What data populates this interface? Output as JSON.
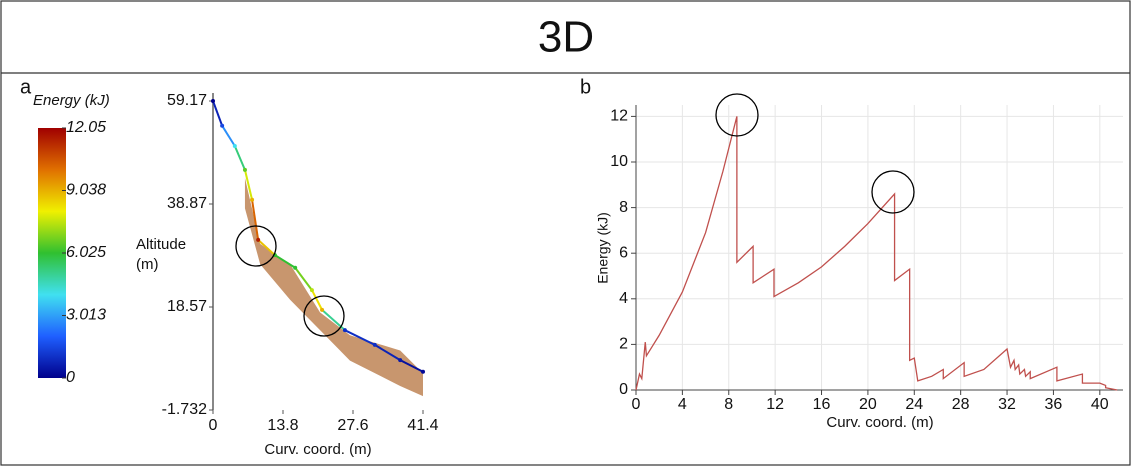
{
  "header": {
    "title": "3D"
  },
  "chart_data": [
    {
      "type": "profile",
      "label": "a",
      "ylabel": [
        "Altitude",
        "(m)"
      ],
      "xlabel": "Curv. coord. (m)",
      "xlim": [
        0,
        41.4
      ],
      "xticks": [
        0,
        13.8,
        27.6,
        41.4
      ],
      "ylim": [
        -1.732,
        59.17
      ],
      "yticks": [
        -1.732,
        18.57,
        38.87,
        59.17
      ],
      "terrain": {
        "color": "#c8966e",
        "x": [
          6.3,
          9.3,
          15.2,
          21.1,
          27.0,
          36.9,
          41.4
        ],
        "top": [
          44,
          31,
          27,
          17.5,
          13,
          10,
          5.5
        ],
        "bottom": [
          38,
          27,
          20,
          14,
          8,
          3,
          1
        ]
      },
      "trajectory": {
        "x": [
          0,
          1.8,
          4.3,
          6.3,
          7.7,
          8.9,
          12.2,
          16.2,
          19.5,
          21.5,
          26.0,
          31.9,
          36.9,
          41.4
        ],
        "altitude": [
          59.17,
          54.3,
          50.3,
          45.6,
          39.7,
          31.8,
          28.8,
          26.3,
          21.9,
          18.0,
          14.0,
          11.1,
          8.1,
          5.8
        ],
        "energy": [
          0,
          1.5,
          4,
          6.5,
          9,
          11.5,
          6,
          6,
          7.5,
          9,
          1,
          1,
          0.5,
          0.2
        ]
      },
      "colorbar": {
        "title": "Energy (kJ)",
        "lim": [
          0,
          12.05
        ],
        "ticks": [
          0,
          3.013,
          6.025,
          9.038,
          12.05
        ],
        "colormap": [
          "#00008b",
          "#1f5fff",
          "#40e0f0",
          "#30c030",
          "#f0f000",
          "#e07000",
          "#a00000"
        ]
      }
    },
    {
      "type": "line",
      "label": "b",
      "xlabel": "Curv. coord. (m)",
      "ylabel": "Energy (kJ)",
      "xlim": [
        0,
        42
      ],
      "xticks": [
        0,
        4,
        8,
        12,
        16,
        20,
        24,
        28,
        32,
        36,
        40
      ],
      "ylim": [
        0,
        12.5
      ],
      "yticks": [
        0,
        2,
        4,
        6,
        8,
        10,
        12
      ],
      "grid": true,
      "series": [
        {
          "color": "#c0504d",
          "x": [
            0,
            0.3,
            0.5,
            0.8,
            0.9,
            2,
            4,
            6,
            7.5,
            8.7,
            8.7,
            10.1,
            10.1,
            11.9,
            11.9,
            14,
            16,
            18,
            20,
            22.3,
            22.3,
            23.6,
            23.6,
            24,
            24.3,
            25.5,
            26.5,
            26.5,
            28.3,
            28.3,
            30,
            32,
            32.3,
            32.6,
            32.7,
            33,
            33.1,
            33.5,
            33.6,
            34,
            34,
            36.3,
            36.3,
            38.5,
            38.5,
            40,
            40.5,
            40.5,
            41.5
          ],
          "values": [
            0,
            0.7,
            0.5,
            2.1,
            1.5,
            2.4,
            4.3,
            6.9,
            9.6,
            12,
            5.6,
            6.3,
            4.7,
            5.3,
            4.1,
            4.7,
            5.4,
            6.3,
            7.3,
            8.6,
            4.8,
            5.3,
            1.3,
            1.4,
            0.4,
            0.6,
            0.9,
            0.5,
            1.2,
            0.6,
            0.9,
            1.8,
            1.0,
            1.3,
            0.9,
            1.1,
            0.7,
            0.9,
            0.6,
            0.8,
            0.5,
            1.0,
            0.4,
            0.7,
            0.3,
            0.3,
            0.2,
            0.1,
            0
          ]
        }
      ]
    }
  ]
}
